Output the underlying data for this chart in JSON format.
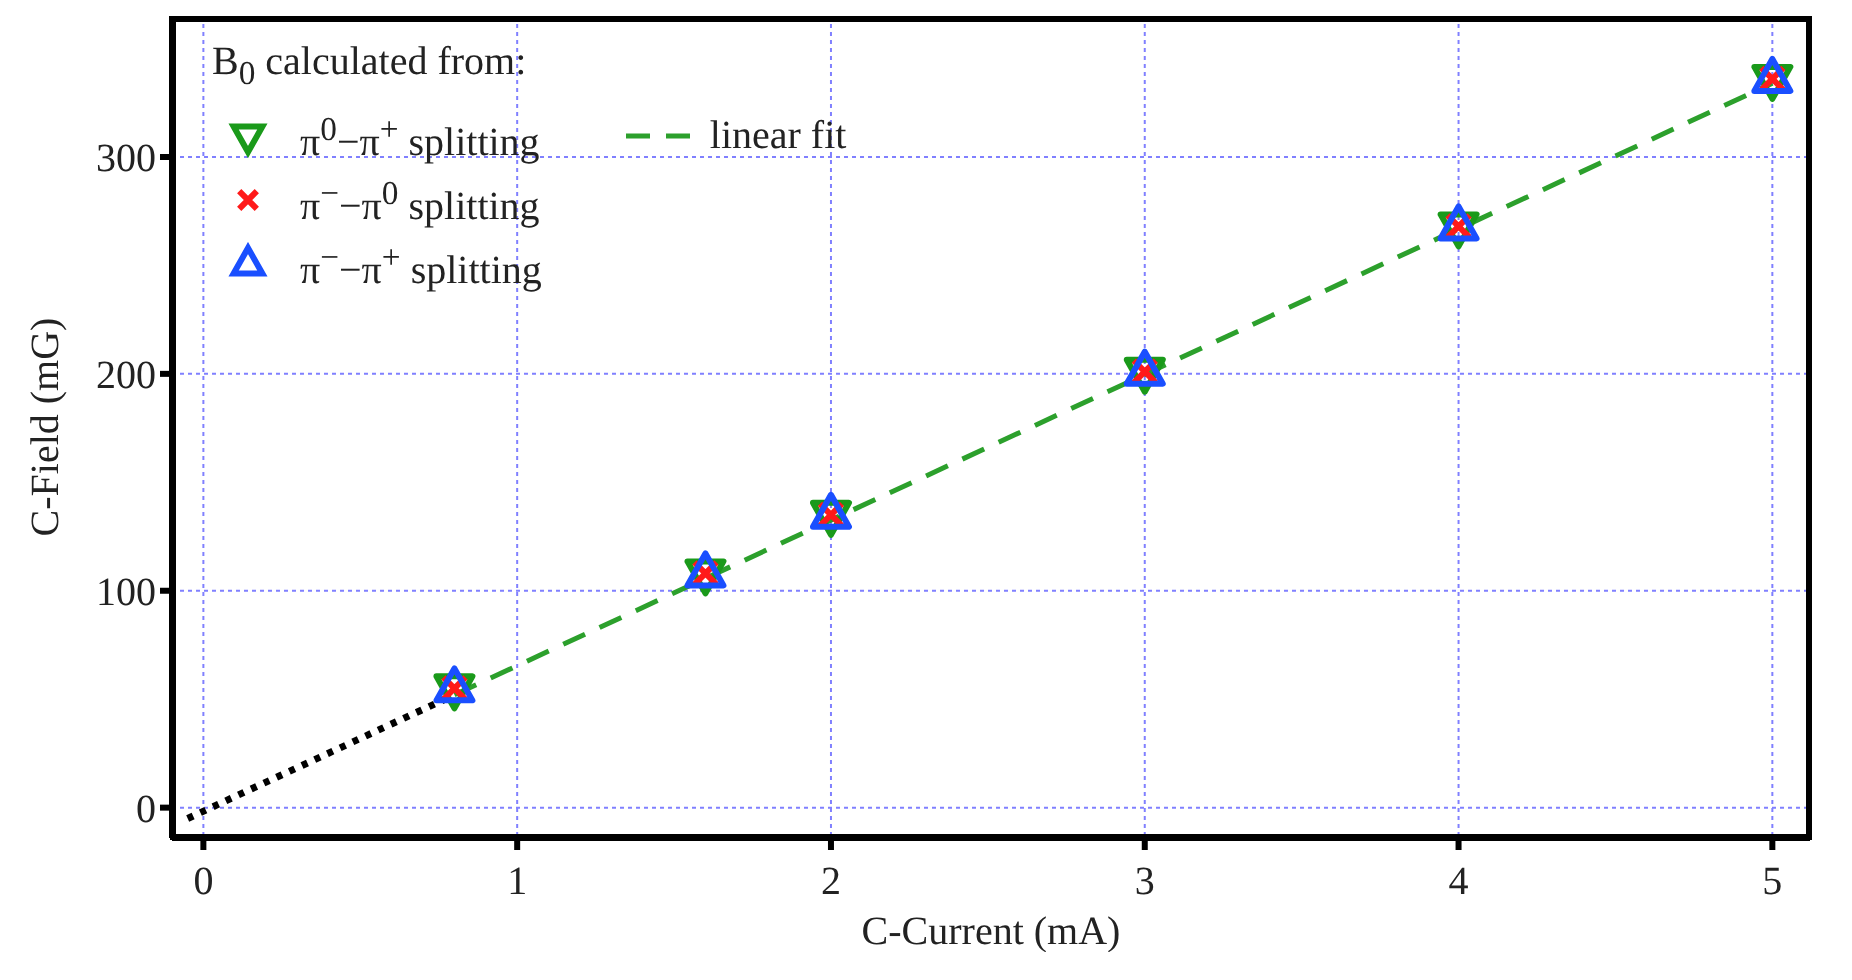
{
  "chart_data": {
    "type": "scatter",
    "xlabel": "C-Current (mA)",
    "ylabel": "C-Field (mG)",
    "legend_title": "B$_{0}$ calculated from:",
    "legend": "top left",
    "grid": true,
    "xlim": [
      -0.1,
      5.12
    ],
    "xticks": [
      0,
      1,
      2,
      3,
      4,
      5
    ],
    "ylim": [
      -14,
      365
    ],
    "yticks": [
      0,
      100,
      200,
      300
    ],
    "series": [
      {
        "name": "π$^{0}$−π$^{+}$ splitting",
        "type": "scatter",
        "marker": "triangle-down",
        "color": "#1a9a1a",
        "x": [
          0.8,
          1.6,
          2,
          3,
          4,
          5
        ],
        "values": [
          55,
          108,
          135,
          201,
          268,
          336
        ]
      },
      {
        "name": "π$^{−}$−π$^{0}$ splitting",
        "type": "scatter",
        "marker": "cross",
        "color": "#ff1a1a",
        "x": [
          0.8,
          1.6,
          2,
          3,
          4,
          5
        ],
        "values": [
          55,
          108,
          135,
          201,
          268,
          336
        ]
      },
      {
        "name": "π$^{−}$−π$^{+}$ splitting",
        "type": "scatter",
        "marker": "triangle",
        "color": "#1a4fff",
        "x": [
          0.8,
          1.6,
          2,
          3,
          4,
          5
        ],
        "values": [
          55,
          108,
          135,
          201,
          268,
          336
        ]
      },
      {
        "name": "linear fit",
        "type": "line",
        "marker": "none",
        "line_style": "dashed",
        "color": "#2ca02c",
        "x": [
          0.8,
          5
        ],
        "values": [
          52,
          334
        ]
      },
      {
        "type": "line",
        "marker": "none",
        "line_style": "dotted",
        "color": "#000000",
        "x": [
          -0.05,
          0.8
        ],
        "values": [
          -5,
          52
        ]
      }
    ]
  }
}
